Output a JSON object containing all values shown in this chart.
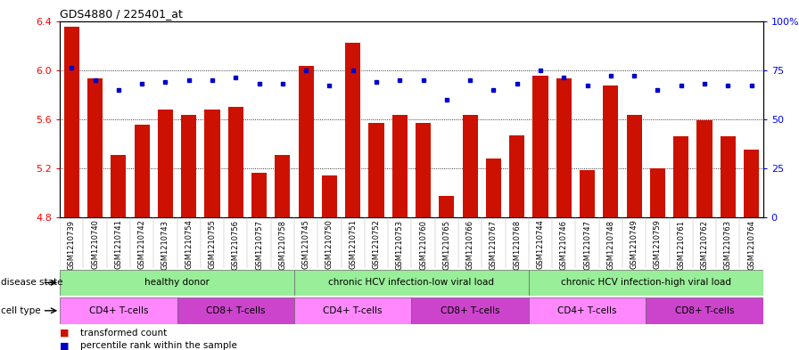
{
  "title": "GDS4880 / 225401_at",
  "samples": [
    "GSM1210739",
    "GSM1210740",
    "GSM1210741",
    "GSM1210742",
    "GSM1210743",
    "GSM1210754",
    "GSM1210755",
    "GSM1210756",
    "GSM1210757",
    "GSM1210758",
    "GSM1210745",
    "GSM1210750",
    "GSM1210751",
    "GSM1210752",
    "GSM1210753",
    "GSM1210760",
    "GSM1210765",
    "GSM1210766",
    "GSM1210767",
    "GSM1210768",
    "GSM1210744",
    "GSM1210746",
    "GSM1210747",
    "GSM1210748",
    "GSM1210749",
    "GSM1210759",
    "GSM1210761",
    "GSM1210762",
    "GSM1210763",
    "GSM1210764"
  ],
  "bar_values": [
    6.35,
    5.93,
    5.31,
    5.55,
    5.68,
    5.63,
    5.68,
    5.7,
    5.16,
    5.31,
    6.03,
    5.14,
    6.22,
    5.57,
    5.63,
    5.57,
    4.97,
    5.63,
    5.28,
    5.47,
    5.95,
    5.93,
    5.18,
    5.87,
    5.63,
    5.2,
    5.46,
    5.59,
    5.46,
    5.35
  ],
  "dot_values": [
    76,
    70,
    65,
    68,
    69,
    70,
    70,
    71,
    68,
    68,
    75,
    67,
    75,
    69,
    70,
    70,
    60,
    70,
    65,
    68,
    75,
    71,
    67,
    72,
    72,
    65,
    67,
    68,
    67,
    67
  ],
  "ylim_left": [
    4.8,
    6.4
  ],
  "ylim_right": [
    0,
    100
  ],
  "yticks_left": [
    4.8,
    5.2,
    5.6,
    6.0,
    6.4
  ],
  "yticks_right": [
    0,
    25,
    50,
    75,
    100
  ],
  "bar_color": "#cc1100",
  "dot_color": "#0000cc",
  "bar_bottom": 4.8,
  "disease_groups": [
    {
      "label": "healthy donor",
      "start": 0,
      "end": 10
    },
    {
      "label": "chronic HCV infection-low viral load",
      "start": 10,
      "end": 20
    },
    {
      "label": "chronic HCV infection-high viral load",
      "start": 20,
      "end": 30
    }
  ],
  "cell_groups": [
    {
      "label": "CD4+ T-cells",
      "start": 0,
      "end": 5,
      "color": "#ff88ff"
    },
    {
      "label": "CD8+ T-cells",
      "start": 5,
      "end": 10,
      "color": "#cc44cc"
    },
    {
      "label": "CD4+ T-cells",
      "start": 10,
      "end": 15,
      "color": "#ff88ff"
    },
    {
      "label": "CD8+ T-cells",
      "start": 15,
      "end": 20,
      "color": "#cc44cc"
    },
    {
      "label": "CD4+ T-cells",
      "start": 20,
      "end": 25,
      "color": "#ff88ff"
    },
    {
      "label": "CD8+ T-cells",
      "start": 25,
      "end": 30,
      "color": "#cc44cc"
    }
  ],
  "disease_bg_color": "#99ee99",
  "figsize": [
    8.96,
    3.93
  ],
  "dpi": 100
}
